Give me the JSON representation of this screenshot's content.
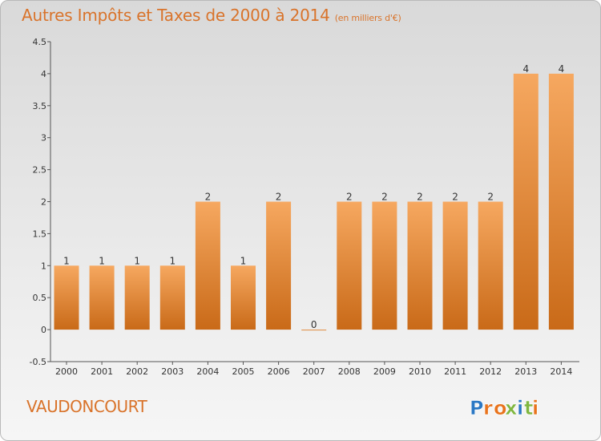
{
  "header": {
    "title": "Autres Impôts et Taxes de 2000 à 2014",
    "unit": "(en milliers d'€)"
  },
  "commune": "VAUDONCOURT",
  "logo": {
    "text": "Proxiti",
    "letter_colors": [
      "#2b78c4",
      "#e8731c",
      "#e8731c",
      "#7fb640",
      "#2b78c4",
      "#7fb640",
      "#e8731c"
    ]
  },
  "colors": {
    "title": "#d9732a",
    "bar_light": "#f6a860",
    "bar_dark": "#c96a18"
  },
  "chart_data": {
    "type": "bar",
    "title": "Autres Impôts et Taxes de 2000 à 2014",
    "subtitle": "(en milliers d'€)",
    "xlabel": "",
    "ylabel": "",
    "categories": [
      "2000",
      "2001",
      "2002",
      "2003",
      "2004",
      "2005",
      "2006",
      "2007",
      "2008",
      "2009",
      "2010",
      "2011",
      "2012",
      "2013",
      "2014"
    ],
    "values": [
      1,
      1,
      1,
      1,
      2,
      1,
      2,
      0,
      2,
      2,
      2,
      2,
      2,
      4,
      4
    ],
    "data_labels": [
      "1",
      "1",
      "1",
      "1",
      "2",
      "1",
      "2",
      "0",
      "2",
      "2",
      "2",
      "2",
      "2",
      "4",
      "4"
    ],
    "ylim": [
      -0.5,
      4.5
    ],
    "yticks": [
      -0.5,
      0,
      0.5,
      1,
      1.5,
      2,
      2.5,
      3,
      3.5,
      4,
      4.5
    ],
    "ytick_labels": [
      "-0.5",
      "0",
      "0.5",
      "1",
      "1.5",
      "2",
      "2.5",
      "3",
      "3.5",
      "4",
      "4.5"
    ],
    "grid": false,
    "legend": "none"
  }
}
